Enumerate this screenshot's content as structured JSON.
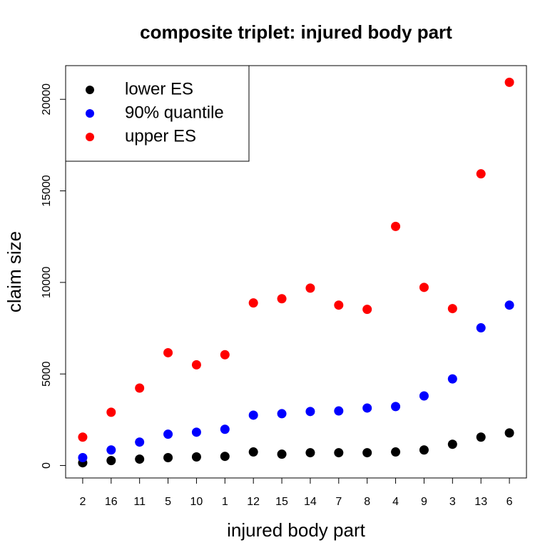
{
  "chart_data": {
    "type": "scatter",
    "title": "composite triplet: injured body part",
    "x_label": "injured body part",
    "y_label": "claim size",
    "categories": [
      "2",
      "16",
      "11",
      "5",
      "10",
      "1",
      "12",
      "15",
      "14",
      "7",
      "8",
      "4",
      "9",
      "3",
      "13",
      "6"
    ],
    "series": [
      {
        "name": "lower ES",
        "color": "#000000",
        "values": [
          150,
          270,
          350,
          430,
          470,
          500,
          740,
          620,
          700,
          700,
          700,
          740,
          850,
          1160,
          1550,
          1780
        ]
      },
      {
        "name": "90% quantile",
        "color": "#0000ff",
        "values": [
          430,
          850,
          1280,
          1710,
          1820,
          1980,
          2750,
          2830,
          2950,
          2980,
          3140,
          3220,
          3800,
          4730,
          7520,
          8760
        ]
      },
      {
        "name": "upper ES",
        "color": "#ff0000",
        "values": [
          1550,
          2910,
          4230,
          6160,
          5500,
          6050,
          8880,
          9110,
          9690,
          8760,
          8530,
          13060,
          9730,
          8570,
          15930,
          20930
        ]
      }
    ],
    "ylim": [
      -680,
      21840
    ],
    "yticks": [
      0,
      5000,
      10000,
      15000,
      20000
    ],
    "legend": "topleft"
  }
}
